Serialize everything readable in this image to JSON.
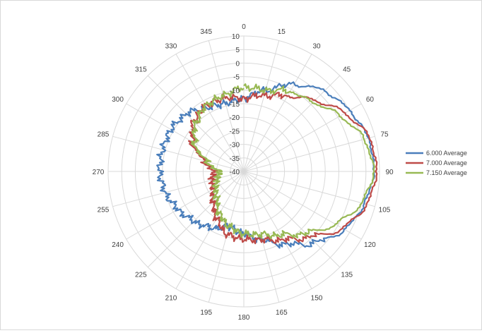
{
  "chart_data": {
    "type": "radar",
    "title": "",
    "angle_ticks": [
      "0",
      "15",
      "30",
      "45",
      "60",
      "75",
      "90",
      "105",
      "120",
      "135",
      "150",
      "165",
      "180",
      "195",
      "210",
      "225",
      "240",
      "255",
      "270",
      "285",
      "300",
      "315",
      "330",
      "345"
    ],
    "radial_ticks": [
      "-40",
      "-35",
      "-30",
      "-25",
      "-20",
      "-15",
      "-10",
      "-5",
      "0",
      "5",
      "10"
    ],
    "rlim": [
      -40,
      10
    ],
    "grid": true,
    "legend_position": "right",
    "series": [
      {
        "name": "6.000 Average",
        "color": "#4a7ebb",
        "angles": [
          0,
          15,
          30,
          45,
          60,
          75,
          90,
          105,
          120,
          135,
          150,
          165,
          180,
          195,
          210,
          225,
          240,
          255,
          270,
          285,
          300,
          315,
          330,
          345
        ],
        "values": [
          -13,
          -9,
          -3,
          2,
          5,
          7.5,
          8,
          6,
          3,
          -3,
          -9,
          -14,
          -17,
          -19,
          -16,
          -14,
          -12,
          -10,
          -9,
          -9,
          -9,
          -10,
          -13,
          -14
        ]
      },
      {
        "name": "7.000 Average",
        "color": "#be4b48",
        "angles": [
          0,
          15,
          30,
          45,
          60,
          75,
          90,
          105,
          120,
          135,
          150,
          165,
          180,
          195,
          210,
          225,
          240,
          255,
          270,
          285,
          300,
          315,
          330,
          345
        ],
        "values": [
          -13,
          -11,
          -8,
          -3,
          3,
          8,
          9,
          7,
          2,
          -6,
          -11,
          -14,
          -15,
          -16,
          -20,
          -24,
          -27,
          -28,
          -29,
          -25,
          -18,
          -14,
          -12,
          -12
        ]
      },
      {
        "name": "7.150 Average",
        "color": "#98b954",
        "angles": [
          0,
          15,
          30,
          45,
          60,
          75,
          90,
          105,
          120,
          135,
          150,
          165,
          180,
          195,
          210,
          225,
          240,
          255,
          270,
          285,
          300,
          315,
          330,
          345
        ],
        "values": [
          -9,
          -9,
          -6,
          -4,
          1,
          6,
          8,
          5,
          -1,
          -8,
          -13,
          -16,
          -17,
          -19,
          -22,
          -26,
          -28,
          -30,
          -31,
          -26,
          -19,
          -15,
          -12,
          -11
        ]
      }
    ]
  }
}
